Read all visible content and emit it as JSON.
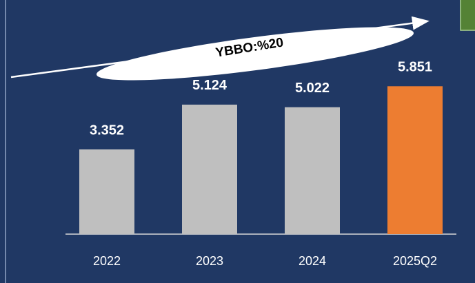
{
  "chart_data": {
    "type": "bar",
    "annotation": "YBBO:%20",
    "categories": [
      "2022",
      "2023",
      "2024",
      "2025Q2"
    ],
    "values": [
      3.352,
      5.124,
      5.022,
      5.851
    ],
    "colors": [
      "#bfbfbf",
      "#bfbfbf",
      "#bfbfbf",
      "#ed7d31"
    ]
  }
}
